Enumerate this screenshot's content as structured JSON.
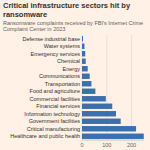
{
  "chart_data": {
    "type": "bar",
    "orientation": "horizontal",
    "title": "Critical infrastructure sectors hit by ransomware",
    "subtitle": "Ransomware complaints received by FBI's Internet Crime Complaint Center in 2023",
    "categories": [
      "Defense industrial base",
      "Water systems",
      "Emergency services",
      "Chemical",
      "Energy",
      "Communications",
      "Transportation",
      "Food and agriculture",
      "Commercial facilities",
      "Financial services",
      "Information technology",
      "Government facilities",
      "Critical manufacturing",
      "Healthcare and public health"
    ],
    "values": [
      4,
      10,
      13,
      15,
      23,
      31,
      38,
      54,
      96,
      122,
      137,
      156,
      218,
      249
    ],
    "color": "#3a6fb0",
    "xlim": [
      0,
      250
    ],
    "xticks": [
      0,
      100,
      200
    ],
    "grid": true
  }
}
